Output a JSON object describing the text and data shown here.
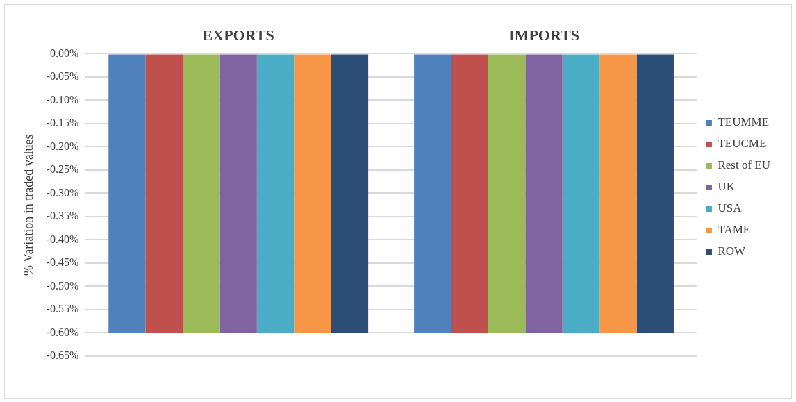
{
  "chart_data": {
    "type": "bar",
    "ylabel": "% Variation in traded values",
    "categories": [
      "EXPORTS",
      "IMPORTS"
    ],
    "series": [
      {
        "name": "TEUMME",
        "color": "#4f81bd",
        "values": [
          -0.6,
          -0.6
        ]
      },
      {
        "name": "TEUCME",
        "color": "#c0504d",
        "values": [
          -0.6,
          -0.6
        ]
      },
      {
        "name": "Rest of EU",
        "color": "#9bbb59",
        "values": [
          -0.6,
          -0.6
        ]
      },
      {
        "name": "UK",
        "color": "#8064a2",
        "values": [
          -0.6,
          -0.6
        ]
      },
      {
        "name": "USA",
        "color": "#4bacc6",
        "values": [
          -0.6,
          -0.6
        ]
      },
      {
        "name": "TAME",
        "color": "#f79646",
        "values": [
          -0.6,
          -0.6
        ]
      },
      {
        "name": "ROW",
        "color": "#2c4d75",
        "values": [
          -0.6,
          -0.6
        ]
      }
    ],
    "ylim": [
      -0.65,
      0
    ],
    "yticks": [
      {
        "value": 0,
        "label": "0.00%"
      },
      {
        "value": -0.05,
        "label": "-0.05%"
      },
      {
        "value": -0.1,
        "label": "-0.10%"
      },
      {
        "value": -0.15,
        "label": "-0.15%"
      },
      {
        "value": -0.2,
        "label": "-0.20%"
      },
      {
        "value": -0.25,
        "label": "-0.25%"
      },
      {
        "value": -0.3,
        "label": "-0.30%"
      },
      {
        "value": -0.35,
        "label": "-0.35%"
      },
      {
        "value": -0.4,
        "label": "-0.40%"
      },
      {
        "value": -0.45,
        "label": "-0.45%"
      },
      {
        "value": -0.5,
        "label": "-0.50%"
      },
      {
        "value": -0.55,
        "label": "-0.55%"
      },
      {
        "value": -0.6,
        "label": "-0.60%"
      },
      {
        "value": -0.65,
        "label": "-0.65%"
      }
    ],
    "grid": "y",
    "legend": "right"
  }
}
